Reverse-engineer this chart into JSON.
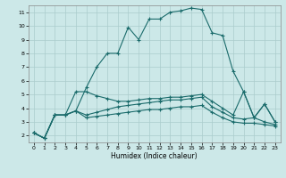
{
  "title": "",
  "xlabel": "Humidex (Indice chaleur)",
  "ylabel": "",
  "bg_color": "#cce8e8",
  "grid_color": "#aacccc",
  "line_color": "#1a6b6b",
  "y_main": [
    2.2,
    1.8,
    3.5,
    3.5,
    3.8,
    5.5,
    7.0,
    8.0,
    8.0,
    9.9,
    9.0,
    10.5,
    10.5,
    11.0,
    11.1,
    11.3,
    11.2,
    9.5,
    9.3,
    6.7,
    5.2,
    3.3,
    4.3,
    3.0
  ],
  "y_line2": [
    2.2,
    1.8,
    3.5,
    3.5,
    5.2,
    5.2,
    4.9,
    4.7,
    4.5,
    4.5,
    4.6,
    4.7,
    4.7,
    4.8,
    4.8,
    4.9,
    5.0,
    4.5,
    4.0,
    3.5,
    5.2,
    3.3,
    4.3,
    3.0
  ],
  "y_line3": [
    2.2,
    1.8,
    3.5,
    3.5,
    3.8,
    3.5,
    3.7,
    3.9,
    4.1,
    4.2,
    4.3,
    4.4,
    4.5,
    4.6,
    4.6,
    4.7,
    4.8,
    4.1,
    3.7,
    3.3,
    3.2,
    3.3,
    3.0,
    2.8
  ],
  "y_line4": [
    2.2,
    1.8,
    3.5,
    3.5,
    3.8,
    3.3,
    3.4,
    3.5,
    3.6,
    3.7,
    3.8,
    3.9,
    3.9,
    4.0,
    4.1,
    4.1,
    4.2,
    3.7,
    3.3,
    3.0,
    2.9,
    2.9,
    2.8,
    2.7
  ],
  "xlim": [
    -0.5,
    23.5
  ],
  "ylim": [
    1.5,
    11.5
  ],
  "yticks": [
    2,
    3,
    4,
    5,
    6,
    7,
    8,
    9,
    10,
    11
  ],
  "xticks": [
    0,
    1,
    2,
    3,
    4,
    5,
    6,
    7,
    8,
    9,
    10,
    11,
    12,
    13,
    14,
    15,
    16,
    17,
    18,
    19,
    20,
    21,
    22,
    23
  ],
  "marker": "+",
  "markersize": 3,
  "linewidth": 0.8,
  "xlabel_fontsize": 5.5,
  "tick_fontsize": 4.5
}
